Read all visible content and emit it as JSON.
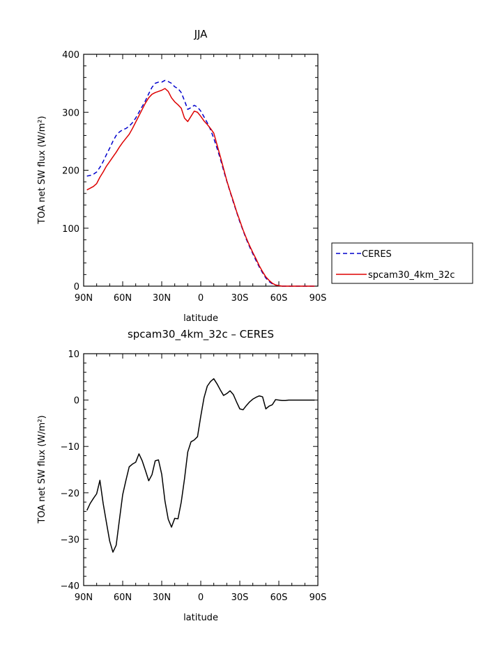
{
  "chart_data": [
    {
      "type": "line",
      "title": "JJA",
      "xlabel": "latitude",
      "ylabel": "TOA net SW flux (W/m²)",
      "ylim": [
        0,
        400
      ],
      "xlim": [
        90,
        -90
      ],
      "x_ticks": [
        90,
        60,
        30,
        0,
        -30,
        -60,
        -90
      ],
      "x_tick_labels": [
        "90N",
        "60N",
        "30N",
        "0",
        "30S",
        "60S",
        "90S"
      ],
      "y_ticks": [
        0,
        100,
        200,
        300,
        400
      ],
      "y_tick_labels": [
        "0",
        "100",
        "200",
        "300",
        "400"
      ],
      "legend": {
        "placement": "right"
      },
      "series": [
        {
          "name": "CERES",
          "color": "#0000cc",
          "style": "dashed",
          "x": [
            87.5,
            85,
            82.5,
            80,
            77.5,
            75,
            72.5,
            70,
            67.5,
            65,
            62.5,
            60,
            57.5,
            55,
            52.5,
            50,
            47.5,
            45,
            42.5,
            40,
            37.5,
            35,
            32.5,
            30,
            27.5,
            25,
            22.5,
            20,
            17.5,
            15,
            12.5,
            10,
            7.5,
            5,
            2.5,
            0,
            -2.5,
            -5,
            -7.5,
            -10,
            -12.5,
            -15,
            -17.5,
            -20,
            -22.5,
            -25,
            -27.5,
            -30,
            -32.5,
            -35,
            -37.5,
            -40,
            -42.5,
            -45,
            -47.5,
            -50,
            -52.5,
            -55,
            -57.5,
            -60,
            -62.5,
            -65,
            -67.5,
            -70,
            -72.5,
            -75,
            -77.5,
            -80,
            -82.5,
            -85,
            -87.5
          ],
          "y": [
            190,
            191,
            193,
            197,
            205,
            215,
            227,
            238,
            250,
            260,
            266,
            270,
            272,
            276,
            282,
            290,
            300,
            310,
            320,
            332,
            343,
            350,
            352,
            352,
            355,
            353,
            350,
            344,
            341,
            334,
            320,
            305,
            308,
            312,
            309,
            302,
            292,
            282,
            270,
            255,
            238,
            220,
            200,
            181,
            163,
            145,
            128,
            111,
            96,
            81,
            68,
            56,
            44,
            33,
            23,
            14,
            8,
            4,
            2,
            1,
            0,
            0,
            0,
            0,
            0,
            0,
            0,
            0,
            0,
            0,
            0
          ]
        },
        {
          "name": "spcam30_4km_32c",
          "color": "#dd0000",
          "style": "solid",
          "x": [
            87.5,
            85,
            82.5,
            80,
            77.5,
            75,
            72.5,
            70,
            67.5,
            65,
            62.5,
            60,
            57.5,
            55,
            52.5,
            50,
            47.5,
            45,
            42.5,
            40,
            37.5,
            35,
            32.5,
            30,
            27.5,
            25,
            22.5,
            20,
            17.5,
            15,
            12.5,
            10,
            7.5,
            5,
            2.5,
            0,
            -2.5,
            -5,
            -7.5,
            -10,
            -12.5,
            -15,
            -17.5,
            -20,
            -22.5,
            -25,
            -27.5,
            -30,
            -32.5,
            -35,
            -37.5,
            -40,
            -42.5,
            -45,
            -47.5,
            -50,
            -52.5,
            -55,
            -57.5,
            -60,
            -62.5,
            -65,
            -67.5,
            -70,
            -72.5,
            -75,
            -77.5,
            -80,
            -82.5,
            -85,
            -87.5
          ],
          "y": [
            166,
            169,
            172,
            177,
            188,
            197,
            207,
            215,
            223,
            231,
            240,
            248,
            255,
            262,
            272,
            283,
            294,
            305,
            316,
            325,
            331,
            334,
            336,
            338,
            341,
            336,
            325,
            318,
            313,
            307,
            290,
            284,
            293,
            302,
            300,
            293,
            285,
            279,
            272,
            264,
            244,
            224,
            203,
            182,
            164,
            147,
            129,
            113,
            97,
            83,
            70,
            58,
            47,
            35,
            25,
            16,
            10,
            5,
            2,
            1,
            0,
            0,
            0,
            0,
            0,
            0,
            0,
            0,
            0,
            0,
            0
          ]
        }
      ]
    },
    {
      "type": "line",
      "title": "spcam30_4km_32c – CERES",
      "xlabel": "latitude",
      "ylabel": "TOA net SW flux (W/m²)",
      "ylim": [
        -40,
        10
      ],
      "xlim": [
        90,
        -90
      ],
      "x_ticks": [
        90,
        60,
        30,
        0,
        -30,
        -60,
        -90
      ],
      "x_tick_labels": [
        "90N",
        "60N",
        "30N",
        "0",
        "30S",
        "60S",
        "90S"
      ],
      "y_ticks": [
        -40,
        -30,
        -20,
        -10,
        0,
        10
      ],
      "y_tick_labels": [
        "−40",
        "−30",
        "−20",
        "−10",
        "0",
        "10"
      ],
      "series": [
        {
          "color": "#000000",
          "style": "solid",
          "x": [
            87.5,
            85,
            82.5,
            80,
            77.5,
            75,
            72.5,
            70,
            67.5,
            65,
            62.5,
            60,
            57.5,
            55,
            52.5,
            50,
            47.5,
            45,
            42.5,
            40,
            37.5,
            35,
            32.5,
            30,
            27.5,
            25,
            22.5,
            20,
            17.5,
            15,
            12.5,
            10,
            7.5,
            5,
            2.5,
            0,
            -2.5,
            -5,
            -7.5,
            -10,
            -12.5,
            -15,
            -17.5,
            -20,
            -22.5,
            -25,
            -27.5,
            -30,
            -32.5,
            -35,
            -37.5,
            -40,
            -42.5,
            -45,
            -47.5,
            -50,
            -52.5,
            -55,
            -57.5,
            -60,
            -62.5,
            -65,
            -67.5,
            -70,
            -72.5,
            -75,
            -77.5,
            -80,
            -82.5,
            -85,
            -87.5
          ],
          "y": [
            -23.8,
            -22.3,
            -21.2,
            -20.2,
            -17.3,
            -22.3,
            -26.4,
            -30.4,
            -32.8,
            -31.3,
            -25.8,
            -20.4,
            -17.3,
            -14.4,
            -13.8,
            -13.4,
            -11.6,
            -13.1,
            -15.2,
            -17.4,
            -16.1,
            -13.1,
            -12.9,
            -16.0,
            -21.8,
            -25.7,
            -27.4,
            -25.5,
            -25.6,
            -22.0,
            -17.0,
            -11.2,
            -9.0,
            -8.6,
            -7.9,
            -3.5,
            0.5,
            3.0,
            4.0,
            4.6,
            3.5,
            2.2,
            1.0,
            1.4,
            2.0,
            1.2,
            -0.4,
            -1.9,
            -2.1,
            -1.2,
            -0.4,
            0.2,
            0.6,
            0.9,
            0.7,
            -1.9,
            -1.3,
            -1.0,
            0.1,
            0.0,
            -0.1,
            -0.1,
            0.0,
            0.0,
            0.0,
            0.0,
            0.0,
            0.0,
            0.0,
            0.0,
            0.0
          ]
        }
      ]
    }
  ]
}
